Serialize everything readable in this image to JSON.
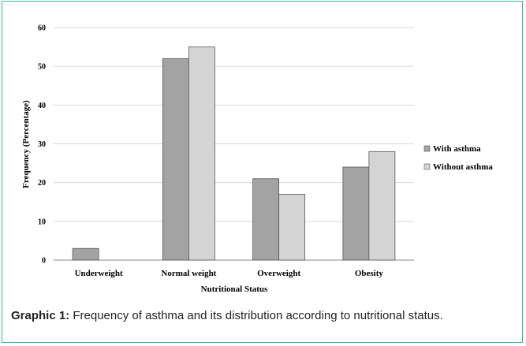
{
  "chart_data": {
    "type": "bar",
    "categories": [
      "Underweight",
      "Normal weight",
      "Overweight",
      "Obesity"
    ],
    "series": [
      {
        "name": "With asthma",
        "values": [
          3,
          52,
          21,
          24
        ],
        "color": "#a3a3a3"
      },
      {
        "name": "Without asthma",
        "values": [
          0,
          55,
          17,
          28
        ],
        "color": "#d4d4d4"
      }
    ],
    "xlabel": "Nutritional Status",
    "ylabel": "Frequency (Percentage)",
    "ylim": [
      0,
      60
    ],
    "yticks": [
      0,
      10,
      20,
      30,
      40,
      50,
      60
    ],
    "grid": true,
    "legend_position": "right"
  },
  "caption": {
    "label": "Graphic 1:",
    "text": " Frequency of asthma and its distribution according to nutritional status."
  }
}
